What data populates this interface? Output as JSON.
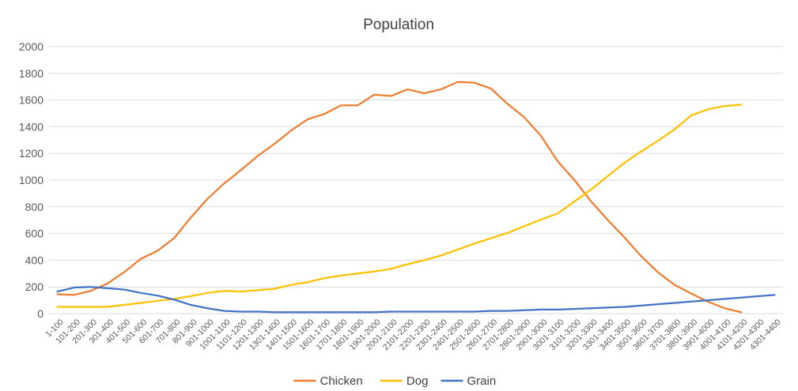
{
  "chart_data": {
    "type": "line",
    "title": "Population",
    "xlabel": "",
    "ylabel": "",
    "ylim": [
      0,
      2000
    ],
    "yticks": [
      0,
      200,
      400,
      600,
      800,
      1000,
      1200,
      1400,
      1600,
      1800,
      2000
    ],
    "grid": true,
    "legend_position": "bottom",
    "categories": [
      "1-100",
      "101-200",
      "201-300",
      "301-400",
      "401-500",
      "501-600",
      "601-700",
      "701-800",
      "801-900",
      "901-1000",
      "1001-1100",
      "1101-1200",
      "1201-1300",
      "1301-1400",
      "1401-1500",
      "1501-1600",
      "1601-1700",
      "1701-1800",
      "1801-1900",
      "1901-2000",
      "2001-2100",
      "2101-2200",
      "2201-2300",
      "2301-2400",
      "2401-2500",
      "2501-2600",
      "2601-2700",
      "2701-2800",
      "2801-2900",
      "2901-3000",
      "3001-3100",
      "3101-3200",
      "3201-3300",
      "3301-3400",
      "3401-3500",
      "3501-3600",
      "3601-3700",
      "3701-3800",
      "3801-3900",
      "3901-4000",
      "4001-4100",
      "4101-4200",
      "4201-4300",
      "4301-4400"
    ],
    "series": [
      {
        "name": "Chicken",
        "color": "#ED7D31",
        "values": [
          145,
          140,
          170,
          225,
          310,
          410,
          470,
          565,
          720,
          860,
          975,
          1075,
          1180,
          1270,
          1370,
          1455,
          1495,
          1560,
          1560,
          1640,
          1630,
          1680,
          1650,
          1680,
          1735,
          1730,
          1685,
          1570,
          1470,
          1330,
          1140,
          1000,
          840,
          700,
          570,
          430,
          310,
          215,
          150,
          90,
          40,
          10,
          null,
          null
        ]
      },
      {
        "name": "Dog",
        "color": "#FFC000",
        "values": [
          50,
          50,
          50,
          50,
          65,
          80,
          95,
          110,
          130,
          155,
          170,
          165,
          175,
          185,
          215,
          235,
          265,
          285,
          300,
          315,
          335,
          370,
          400,
          435,
          480,
          525,
          565,
          605,
          655,
          705,
          750,
          840,
          930,
          1030,
          1130,
          1215,
          1295,
          1380,
          1485,
          1530,
          1555,
          1565,
          null,
          null
        ]
      },
      {
        "name": "Grain",
        "color": "#4472C4",
        "values": [
          165,
          195,
          200,
          190,
          180,
          155,
          135,
          105,
          65,
          40,
          20,
          15,
          15,
          10,
          10,
          10,
          10,
          10,
          10,
          10,
          15,
          15,
          15,
          15,
          15,
          15,
          20,
          20,
          25,
          30,
          30,
          35,
          40,
          45,
          50,
          60,
          70,
          80,
          90,
          100,
          110,
          120,
          130,
          140
        ]
      }
    ]
  }
}
